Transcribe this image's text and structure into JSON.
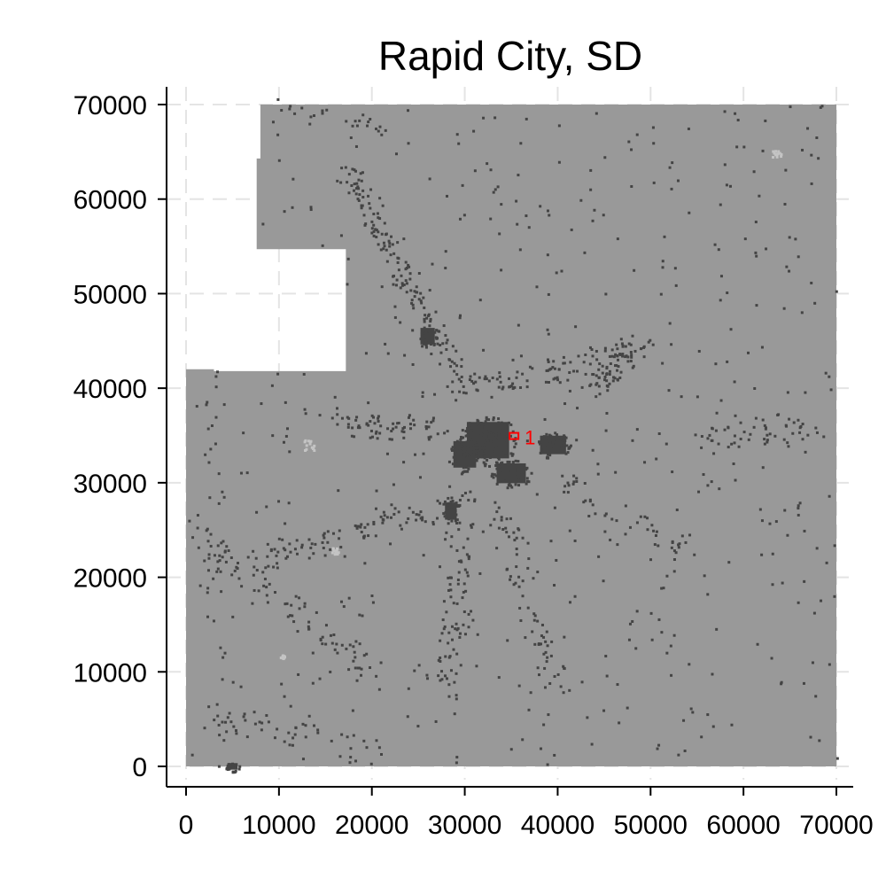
{
  "chart_data": {
    "type": "heatmap",
    "title": "Rapid City, SD",
    "xlabel": "",
    "ylabel": "",
    "xlim": [
      0,
      70000
    ],
    "ylim": [
      0,
      70000
    ],
    "x_ticks": [
      0,
      10000,
      20000,
      30000,
      40000,
      50000,
      60000,
      70000
    ],
    "y_ticks": [
      0,
      10000,
      20000,
      30000,
      40000,
      50000,
      60000,
      70000
    ],
    "grid": true,
    "background_color": "#999999",
    "developed_color": "#444444",
    "light_patch_color": "#c4c4c4",
    "marker_color": "#ff0000",
    "covered_area_polygon": [
      [
        0,
        0
      ],
      [
        70000,
        0
      ],
      [
        70000,
        70000
      ],
      [
        8000,
        70000
      ],
      [
        8000,
        64300
      ],
      [
        7600,
        64300
      ],
      [
        7600,
        54700
      ],
      [
        17200,
        54700
      ],
      [
        17200,
        41800
      ],
      [
        3000,
        41800
      ],
      [
        3000,
        42000
      ],
      [
        0,
        42000
      ]
    ],
    "dense_core_clusters": [
      {
        "x": 32500,
        "y": 34500,
        "w": 6500,
        "h": 5500
      },
      {
        "x": 30000,
        "y": 33000,
        "w": 3500,
        "h": 4000
      },
      {
        "x": 39500,
        "y": 34000,
        "w": 4000,
        "h": 2800
      },
      {
        "x": 35000,
        "y": 31000,
        "w": 4500,
        "h": 3000
      },
      {
        "x": 28500,
        "y": 27000,
        "w": 1800,
        "h": 2600
      },
      {
        "x": 26000,
        "y": 45500,
        "w": 2200,
        "h": 2500
      },
      {
        "x": 5000,
        "y": 0,
        "w": 1600,
        "h": 1000
      }
    ],
    "scatter_corridors": [
      {
        "from": [
          17500,
          63000
        ],
        "to": [
          30000,
          40000
        ],
        "count": 160
      },
      {
        "from": [
          30000,
          40000
        ],
        "to": [
          50000,
          44000
        ],
        "count": 90
      },
      {
        "from": [
          44000,
          40000
        ],
        "to": [
          47500,
          45000
        ],
        "count": 60
      },
      {
        "from": [
          1000,
          25000
        ],
        "to": [
          20000,
          10000
        ],
        "count": 80
      },
      {
        "from": [
          8000,
          22000
        ],
        "to": [
          30000,
          28000
        ],
        "count": 90
      },
      {
        "from": [
          30000,
          30000
        ],
        "to": [
          28000,
          8000
        ],
        "count": 80
      },
      {
        "from": [
          17000,
          36000
        ],
        "to": [
          28000,
          36000
        ],
        "count": 60
      },
      {
        "from": [
          34000,
          28000
        ],
        "to": [
          40000,
          8000
        ],
        "count": 60
      },
      {
        "from": [
          40000,
          30000
        ],
        "to": [
          55000,
          22000
        ],
        "count": 40
      },
      {
        "from": [
          3000,
          42000
        ],
        "to": [
          3000,
          2000
        ],
        "count": 40
      },
      {
        "from": [
          3000,
          5000
        ],
        "to": [
          20000,
          2000
        ],
        "count": 40
      },
      {
        "from": [
          10000,
          69500
        ],
        "to": [
          21000,
          68000
        ],
        "count": 25
      },
      {
        "from": [
          55000,
          35000
        ],
        "to": [
          68000,
          36000
        ],
        "count": 50
      }
    ],
    "random_scatter_count": 520,
    "light_patches": [
      {
        "x": 12600,
        "y": 33200,
        "w": 1200,
        "h": 1400
      },
      {
        "x": 15500,
        "y": 22500,
        "w": 800,
        "h": 700
      },
      {
        "x": 10000,
        "y": 11500,
        "w": 600,
        "h": 400
      },
      {
        "x": 63000,
        "y": 64500,
        "w": 1000,
        "h": 700
      }
    ],
    "highlight_marker": {
      "x": 35300,
      "y": 34900,
      "label": "1"
    }
  }
}
